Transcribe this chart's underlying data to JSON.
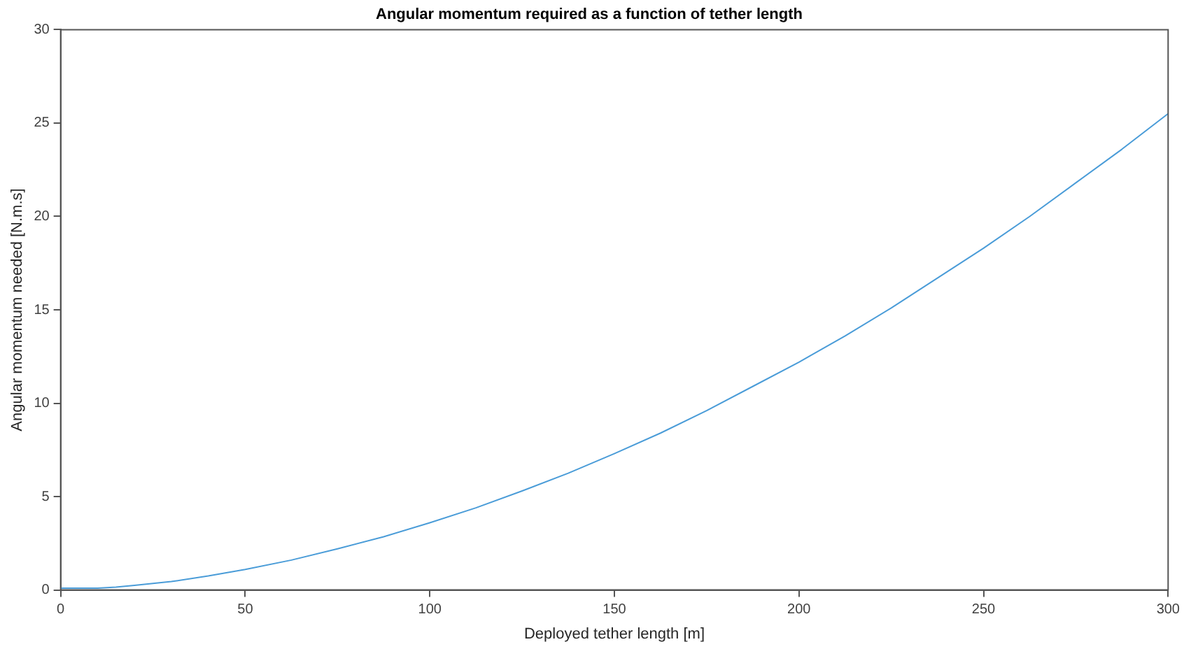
{
  "chart_data": {
    "type": "line",
    "title": "Angular momentum required as a function of tether length",
    "xlabel": "Deployed tether length [m]",
    "ylabel": "Angular momentum needed [N.m.s]",
    "x": [
      0,
      5,
      10,
      15,
      20,
      30,
      40,
      50,
      62.5,
      75,
      87.5,
      100,
      112.5,
      125,
      137.5,
      150,
      162.5,
      175,
      187.5,
      200,
      212.5,
      225,
      237.5,
      250,
      262.5,
      275,
      287.5,
      300
    ],
    "series": [
      {
        "color": "#4a9cd8",
        "values": [
          0.1,
          0.1,
          0.1,
          0.15,
          0.25,
          0.45,
          0.75,
          1.1,
          1.6,
          2.2,
          2.85,
          3.6,
          4.4,
          5.3,
          6.25,
          7.3,
          8.4,
          9.6,
          10.9,
          12.2,
          13.6,
          15.1,
          16.7,
          18.3,
          20,
          21.8,
          23.6,
          25.5
        ]
      }
    ],
    "xlim": [
      0,
      300
    ],
    "xticks": [
      0,
      50,
      100,
      150,
      200,
      250,
      300
    ],
    "ylim": [
      0,
      30
    ],
    "yticks": [
      0,
      5,
      10,
      15,
      20,
      25,
      30
    ],
    "grid": false,
    "legend": false,
    "marker": "none",
    "line_style": "solid"
  }
}
